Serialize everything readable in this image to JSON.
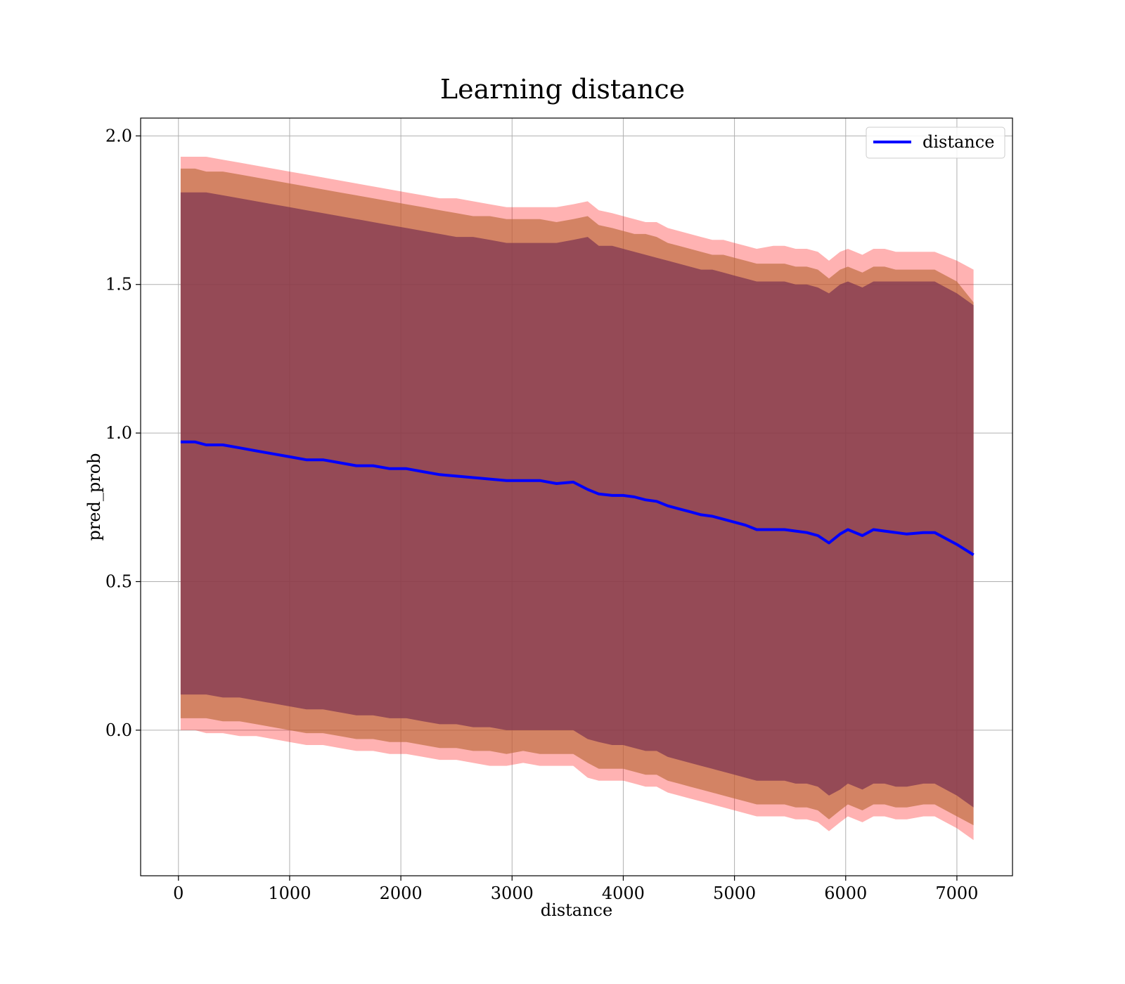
{
  "chart_data": {
    "type": "area",
    "title": "Learning distance",
    "xlabel": "distance",
    "ylabel": "pred_prob",
    "xlim": [
      -340,
      7500
    ],
    "ylim": [
      -0.49,
      2.06
    ],
    "x_ticks": [
      0,
      1000,
      2000,
      3000,
      4000,
      5000,
      6000,
      7000
    ],
    "x_tick_labels": [
      "0",
      "1000",
      "2000",
      "3000",
      "4000",
      "5000",
      "6000",
      "7000"
    ],
    "y_ticks": [
      0.0,
      0.5,
      1.0,
      1.5,
      2.0
    ],
    "y_tick_labels": [
      "0.0",
      "0.5",
      "1.0",
      "1.5",
      "2.0"
    ],
    "grid": true,
    "legend": {
      "position": "top-right",
      "entries": [
        "distance"
      ]
    },
    "colors": {
      "line": "#0000ff",
      "band_outer": "#ff0000",
      "band_middle": "#bb6a3a",
      "band_inner": "#7a3250",
      "grid": "#b0b0b0"
    },
    "x": [
      20,
      150,
      250,
      400,
      550,
      700,
      850,
      1000,
      1150,
      1300,
      1450,
      1600,
      1750,
      1900,
      2050,
      2200,
      2350,
      2500,
      2650,
      2800,
      2950,
      3100,
      3250,
      3400,
      3550,
      3680,
      3780,
      3900,
      4000,
      4100,
      4200,
      4300,
      4400,
      4500,
      4600,
      4700,
      4800,
      4900,
      5000,
      5100,
      5200,
      5350,
      5450,
      5550,
      5650,
      5750,
      5850,
      5950,
      6020,
      6150,
      6250,
      6350,
      6450,
      6550,
      6700,
      6800,
      7000,
      7150
    ],
    "series": [
      {
        "name": "distance",
        "values": [
          0.97,
          0.97,
          0.96,
          0.96,
          0.95,
          0.94,
          0.93,
          0.92,
          0.91,
          0.91,
          0.9,
          0.89,
          0.89,
          0.88,
          0.88,
          0.87,
          0.86,
          0.855,
          0.85,
          0.845,
          0.84,
          0.84,
          0.84,
          0.83,
          0.835,
          0.81,
          0.795,
          0.79,
          0.79,
          0.785,
          0.775,
          0.77,
          0.755,
          0.745,
          0.735,
          0.725,
          0.72,
          0.71,
          0.7,
          0.69,
          0.675,
          0.675,
          0.675,
          0.67,
          0.665,
          0.655,
          0.63,
          0.66,
          0.675,
          0.655,
          0.675,
          0.67,
          0.665,
          0.66,
          0.665,
          0.665,
          0.625,
          0.59
        ],
        "band_outer": {
          "upper": [
            1.93,
            1.93,
            1.93,
            1.92,
            1.91,
            1.9,
            1.89,
            1.88,
            1.87,
            1.86,
            1.85,
            1.84,
            1.83,
            1.82,
            1.81,
            1.8,
            1.79,
            1.79,
            1.78,
            1.77,
            1.76,
            1.76,
            1.76,
            1.76,
            1.77,
            1.78,
            1.75,
            1.74,
            1.73,
            1.72,
            1.71,
            1.71,
            1.69,
            1.68,
            1.67,
            1.66,
            1.65,
            1.65,
            1.64,
            1.63,
            1.62,
            1.63,
            1.63,
            1.62,
            1.62,
            1.61,
            1.58,
            1.61,
            1.62,
            1.6,
            1.62,
            1.62,
            1.61,
            1.61,
            1.61,
            1.61,
            1.58,
            1.55
          ],
          "lower": [
            0.0,
            0.0,
            -0.01,
            -0.01,
            -0.02,
            -0.02,
            -0.03,
            -0.04,
            -0.05,
            -0.05,
            -0.06,
            -0.07,
            -0.07,
            -0.08,
            -0.08,
            -0.09,
            -0.1,
            -0.1,
            -0.11,
            -0.12,
            -0.12,
            -0.11,
            -0.12,
            -0.12,
            -0.12,
            -0.16,
            -0.17,
            -0.17,
            -0.17,
            -0.18,
            -0.19,
            -0.19,
            -0.21,
            -0.22,
            -0.23,
            -0.24,
            -0.25,
            -0.26,
            -0.27,
            -0.28,
            -0.29,
            -0.29,
            -0.29,
            -0.3,
            -0.3,
            -0.31,
            -0.34,
            -0.31,
            -0.29,
            -0.31,
            -0.29,
            -0.29,
            -0.3,
            -0.3,
            -0.29,
            -0.29,
            -0.33,
            -0.37
          ]
        },
        "band_middle": {
          "upper": [
            1.89,
            1.89,
            1.88,
            1.88,
            1.87,
            1.86,
            1.85,
            1.84,
            1.83,
            1.82,
            1.81,
            1.8,
            1.79,
            1.78,
            1.77,
            1.76,
            1.75,
            1.74,
            1.73,
            1.73,
            1.72,
            1.72,
            1.72,
            1.71,
            1.72,
            1.73,
            1.7,
            1.69,
            1.68,
            1.67,
            1.67,
            1.66,
            1.64,
            1.63,
            1.62,
            1.61,
            1.6,
            1.6,
            1.59,
            1.58,
            1.57,
            1.57,
            1.57,
            1.56,
            1.56,
            1.55,
            1.52,
            1.55,
            1.56,
            1.54,
            1.56,
            1.56,
            1.55,
            1.55,
            1.55,
            1.55,
            1.51,
            1.44
          ],
          "lower": [
            0.04,
            0.04,
            0.04,
            0.03,
            0.03,
            0.02,
            0.01,
            0.0,
            -0.01,
            -0.01,
            -0.02,
            -0.03,
            -0.03,
            -0.04,
            -0.04,
            -0.05,
            -0.06,
            -0.06,
            -0.07,
            -0.07,
            -0.08,
            -0.07,
            -0.08,
            -0.08,
            -0.08,
            -0.11,
            -0.13,
            -0.13,
            -0.13,
            -0.14,
            -0.15,
            -0.15,
            -0.17,
            -0.18,
            -0.19,
            -0.2,
            -0.21,
            -0.22,
            -0.23,
            -0.24,
            -0.25,
            -0.25,
            -0.25,
            -0.26,
            -0.26,
            -0.27,
            -0.3,
            -0.27,
            -0.25,
            -0.27,
            -0.25,
            -0.25,
            -0.26,
            -0.26,
            -0.25,
            -0.25,
            -0.29,
            -0.32
          ]
        },
        "band_inner": {
          "upper": [
            1.81,
            1.81,
            1.81,
            1.8,
            1.79,
            1.78,
            1.77,
            1.76,
            1.75,
            1.74,
            1.73,
            1.72,
            1.71,
            1.7,
            1.69,
            1.68,
            1.67,
            1.66,
            1.66,
            1.65,
            1.64,
            1.64,
            1.64,
            1.64,
            1.65,
            1.66,
            1.63,
            1.63,
            1.62,
            1.61,
            1.6,
            1.59,
            1.58,
            1.57,
            1.56,
            1.55,
            1.55,
            1.54,
            1.53,
            1.52,
            1.51,
            1.51,
            1.51,
            1.5,
            1.5,
            1.49,
            1.47,
            1.5,
            1.51,
            1.49,
            1.51,
            1.51,
            1.51,
            1.51,
            1.51,
            1.51,
            1.47,
            1.43
          ],
          "lower": [
            0.12,
            0.12,
            0.12,
            0.11,
            0.11,
            0.1,
            0.09,
            0.08,
            0.07,
            0.07,
            0.06,
            0.05,
            0.05,
            0.04,
            0.04,
            0.03,
            0.02,
            0.02,
            0.01,
            0.01,
            0.0,
            0.0,
            0.0,
            0.0,
            0.0,
            -0.03,
            -0.04,
            -0.05,
            -0.05,
            -0.06,
            -0.07,
            -0.07,
            -0.09,
            -0.1,
            -0.11,
            -0.12,
            -0.13,
            -0.14,
            -0.15,
            -0.16,
            -0.17,
            -0.17,
            -0.17,
            -0.18,
            -0.18,
            -0.19,
            -0.22,
            -0.2,
            -0.18,
            -0.2,
            -0.18,
            -0.18,
            -0.19,
            -0.19,
            -0.18,
            -0.18,
            -0.22,
            -0.26
          ]
        }
      }
    ]
  }
}
